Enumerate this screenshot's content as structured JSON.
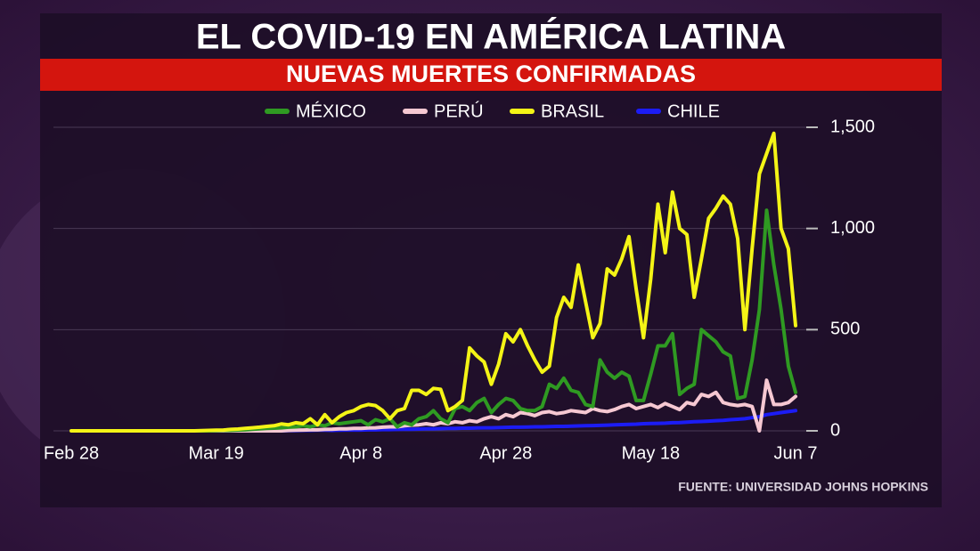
{
  "chart_data": {
    "type": "line",
    "title": "EL COVID-19 EN AMÉRICA LATINA",
    "subtitle": "NUEVAS MUERTES CONFIRMADAS",
    "source": "FUENTE: UNIVERSIDAD JOHNS HOPKINS",
    "categories": [
      "Feb 28",
      null,
      null,
      null,
      null,
      null,
      null,
      null,
      null,
      null,
      null,
      null,
      null,
      null,
      null,
      null,
      null,
      null,
      null,
      null,
      "Mar 19",
      null,
      null,
      null,
      null,
      null,
      null,
      null,
      null,
      null,
      null,
      null,
      null,
      null,
      null,
      null,
      null,
      null,
      null,
      null,
      "Apr 8",
      null,
      null,
      null,
      null,
      null,
      null,
      null,
      null,
      null,
      null,
      null,
      null,
      null,
      null,
      null,
      null,
      null,
      null,
      null,
      "Apr 28",
      null,
      null,
      null,
      null,
      null,
      null,
      null,
      null,
      null,
      null,
      null,
      null,
      null,
      null,
      null,
      null,
      null,
      null,
      null,
      "May 18",
      null,
      null,
      null,
      null,
      null,
      null,
      null,
      null,
      null,
      null,
      null,
      null,
      null,
      null,
      null,
      null,
      null,
      null,
      null,
      "Jun 7"
    ],
    "ylim": [
      0,
      1500
    ],
    "yticks": [
      0,
      500,
      {
        "value": 1000,
        "label": "1,000"
      },
      {
        "value": 1500,
        "label": "1,500"
      }
    ],
    "grid": true,
    "series": [
      {
        "name": "MÉXICO",
        "color": "#2f9a22",
        "values": [
          null,
          null,
          null,
          null,
          null,
          0,
          0,
          0,
          0,
          0,
          0,
          0,
          0,
          0,
          0,
          0,
          0,
          0,
          0,
          0,
          1,
          2,
          2,
          4,
          5,
          8,
          10,
          12,
          13,
          15,
          18,
          20,
          25,
          20,
          30,
          25,
          40,
          35,
          40,
          45,
          50,
          30,
          55,
          45,
          60,
          20,
          40,
          30,
          60,
          70,
          100,
          60,
          40,
          110,
          120,
          100,
          140,
          160,
          90,
          130,
          160,
          150,
          110,
          100,
          100,
          120,
          230,
          210,
          260,
          200,
          190,
          130,
          120,
          350,
          290,
          260,
          290,
          270,
          150,
          150,
          280,
          420,
          420,
          480,
          180,
          210,
          230,
          500,
          470,
          440,
          390,
          370,
          160,
          170,
          350,
          600,
          1090,
          820,
          600,
          320,
          190
        ]
      },
      {
        "name": "PERÚ",
        "color": "#f6c8d2",
        "values": [
          null,
          null,
          null,
          null,
          null,
          0,
          0,
          0,
          0,
          0,
          0,
          0,
          0,
          0,
          0,
          0,
          0,
          0,
          0,
          0,
          0,
          0,
          0,
          0,
          0,
          0,
          0,
          0,
          0,
          0,
          2,
          3,
          4,
          5,
          5,
          7,
          8,
          10,
          10,
          12,
          12,
          14,
          15,
          18,
          20,
          20,
          25,
          28,
          30,
          35,
          30,
          40,
          35,
          45,
          40,
          50,
          45,
          60,
          70,
          60,
          80,
          70,
          90,
          85,
          75,
          90,
          95,
          85,
          90,
          100,
          95,
          90,
          110,
          100,
          95,
          105,
          120,
          130,
          110,
          120,
          130,
          115,
          135,
          120,
          105,
          140,
          130,
          180,
          170,
          190,
          140,
          130,
          125,
          130,
          120,
          0,
          250,
          130,
          130,
          140,
          170
        ]
      },
      {
        "name": "BRASIL",
        "color": "#f4f416",
        "values": [
          0,
          0,
          0,
          0,
          0,
          0,
          0,
          0,
          0,
          0,
          0,
          0,
          0,
          0,
          0,
          0,
          0,
          0,
          1,
          2,
          3,
          4,
          7,
          9,
          12,
          15,
          18,
          22,
          25,
          34,
          30,
          40,
          35,
          60,
          30,
          80,
          40,
          70,
          90,
          100,
          120,
          130,
          125,
          100,
          60,
          100,
          110,
          200,
          200,
          180,
          210,
          205,
          100,
          120,
          150,
          410,
          370,
          340,
          230,
          330,
          480,
          440,
          500,
          420,
          350,
          290,
          320,
          560,
          660,
          610,
          820,
          640,
          460,
          530,
          800,
          770,
          850,
          960,
          700,
          460,
          750,
          1120,
          880,
          1180,
          1000,
          970,
          660,
          850,
          1050,
          1100,
          1160,
          1120,
          950,
          500,
          900,
          1270,
          1370,
          1470,
          1000,
          900,
          520
        ]
      },
      {
        "name": "CHILE",
        "color": "#1c1cf5",
        "values": [
          null,
          null,
          null,
          null,
          null,
          0,
          0,
          0,
          0,
          0,
          0,
          0,
          0,
          0,
          0,
          0,
          0,
          0,
          0,
          0,
          0,
          0,
          0,
          0,
          0,
          0,
          0,
          0,
          0,
          0,
          1,
          1,
          2,
          2,
          3,
          3,
          2,
          3,
          4,
          4,
          4,
          5,
          5,
          6,
          6,
          7,
          8,
          8,
          9,
          10,
          10,
          11,
          12,
          12,
          13,
          13,
          14,
          15,
          15,
          16,
          17,
          18,
          18,
          19,
          20,
          20,
          21,
          22,
          22,
          23,
          24,
          25,
          26,
          27,
          28,
          30,
          31,
          32,
          33,
          35,
          36,
          37,
          38,
          40,
          41,
          43,
          45,
          46,
          48,
          50,
          52,
          55,
          57,
          60,
          65,
          70,
          80,
          85,
          90,
          95,
          100
        ]
      }
    ]
  }
}
